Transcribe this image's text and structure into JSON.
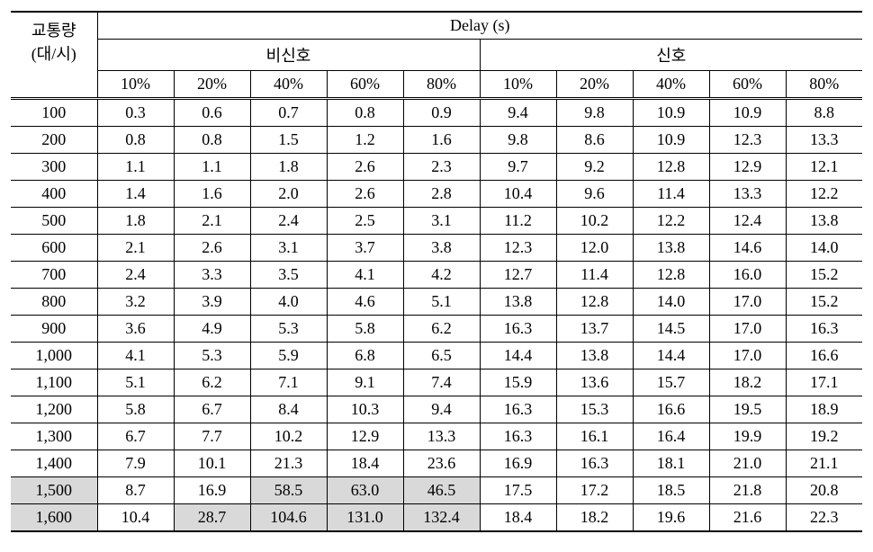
{
  "header": {
    "rowLabel1": "교통량",
    "rowLabel2": "(대/시)",
    "delayLabel": "Delay (s)",
    "group1": "비신호",
    "group2": "신호",
    "pcts": [
      "10%",
      "20%",
      "40%",
      "60%",
      "80%",
      "10%",
      "20%",
      "40%",
      "60%",
      "80%"
    ]
  },
  "rows": [
    {
      "t": "100",
      "v": [
        "0.3",
        "0.6",
        "0.7",
        "0.8",
        "0.9",
        "9.4",
        "9.8",
        "10.9",
        "10.9",
        "8.8"
      ],
      "hlRow": false,
      "hlCells": []
    },
    {
      "t": "200",
      "v": [
        "0.8",
        "0.8",
        "1.5",
        "1.2",
        "1.6",
        "9.8",
        "8.6",
        "10.9",
        "12.3",
        "13.3"
      ],
      "hlRow": false,
      "hlCells": []
    },
    {
      "t": "300",
      "v": [
        "1.1",
        "1.1",
        "1.8",
        "2.6",
        "2.3",
        "9.7",
        "9.2",
        "12.8",
        "12.9",
        "12.1"
      ],
      "hlRow": false,
      "hlCells": []
    },
    {
      "t": "400",
      "v": [
        "1.4",
        "1.6",
        "2.0",
        "2.6",
        "2.8",
        "10.4",
        "9.6",
        "11.4",
        "13.3",
        "12.2"
      ],
      "hlRow": false,
      "hlCells": []
    },
    {
      "t": "500",
      "v": [
        "1.8",
        "2.1",
        "2.4",
        "2.5",
        "3.1",
        "11.2",
        "10.2",
        "12.2",
        "12.4",
        "13.8"
      ],
      "hlRow": false,
      "hlCells": []
    },
    {
      "t": "600",
      "v": [
        "2.1",
        "2.6",
        "3.1",
        "3.7",
        "3.8",
        "12.3",
        "12.0",
        "13.8",
        "14.6",
        "14.0"
      ],
      "hlRow": false,
      "hlCells": []
    },
    {
      "t": "700",
      "v": [
        "2.4",
        "3.3",
        "3.5",
        "4.1",
        "4.2",
        "12.7",
        "11.4",
        "12.8",
        "16.0",
        "15.2"
      ],
      "hlRow": false,
      "hlCells": []
    },
    {
      "t": "800",
      "v": [
        "3.2",
        "3.9",
        "4.0",
        "4.6",
        "5.1",
        "13.8",
        "12.8",
        "14.0",
        "17.0",
        "15.2"
      ],
      "hlRow": false,
      "hlCells": []
    },
    {
      "t": "900",
      "v": [
        "3.6",
        "4.9",
        "5.3",
        "5.8",
        "6.2",
        "16.3",
        "13.7",
        "14.5",
        "17.0",
        "16.3"
      ],
      "hlRow": false,
      "hlCells": []
    },
    {
      "t": "1,000",
      "v": [
        "4.1",
        "5.3",
        "5.9",
        "6.8",
        "6.5",
        "14.4",
        "13.8",
        "14.4",
        "17.0",
        "16.6"
      ],
      "hlRow": false,
      "hlCells": []
    },
    {
      "t": "1,100",
      "v": [
        "5.1",
        "6.2",
        "7.1",
        "9.1",
        "7.4",
        "15.9",
        "13.6",
        "15.7",
        "18.2",
        "17.1"
      ],
      "hlRow": false,
      "hlCells": []
    },
    {
      "t": "1,200",
      "v": [
        "5.8",
        "6.7",
        "8.4",
        "10.3",
        "9.4",
        "16.3",
        "15.3",
        "16.6",
        "19.5",
        "18.9"
      ],
      "hlRow": false,
      "hlCells": []
    },
    {
      "t": "1,300",
      "v": [
        "6.7",
        "7.7",
        "10.2",
        "12.9",
        "13.3",
        "16.3",
        "16.1",
        "16.4",
        "19.9",
        "19.2"
      ],
      "hlRow": false,
      "hlCells": []
    },
    {
      "t": "1,400",
      "v": [
        "7.9",
        "10.1",
        "21.3",
        "18.4",
        "23.6",
        "16.9",
        "16.3",
        "18.1",
        "21.0",
        "21.1"
      ],
      "hlRow": false,
      "hlCells": []
    },
    {
      "t": "1,500",
      "v": [
        "8.7",
        "16.9",
        "58.5",
        "63.0",
        "46.5",
        "17.5",
        "17.2",
        "18.5",
        "21.8",
        "20.8"
      ],
      "hlRow": true,
      "hlCells": [
        2,
        3,
        4
      ]
    },
    {
      "t": "1,600",
      "v": [
        "10.4",
        "28.7",
        "104.6",
        "131.0",
        "132.4",
        "18.4",
        "18.2",
        "19.6",
        "21.6",
        "22.3"
      ],
      "hlRow": true,
      "hlCells": [
        1,
        2,
        3,
        4
      ]
    }
  ],
  "style": {
    "highlight_color": "#d9d9d9",
    "border_color": "#000000",
    "font_size_pt": 14
  }
}
